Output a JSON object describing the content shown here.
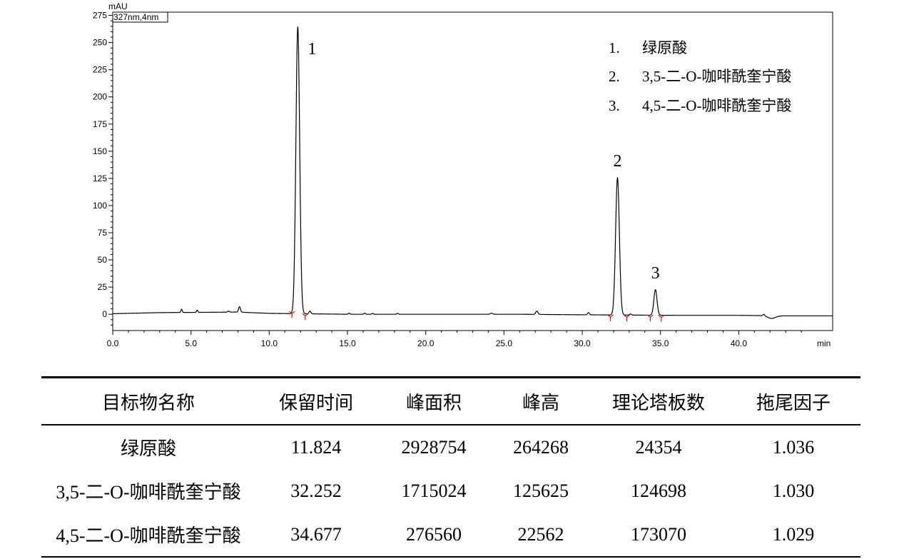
{
  "chart_data": {
    "type": "line",
    "detector_label": "327nm,4nm",
    "y_unit": "mAU",
    "x_unit": "min",
    "xlim": [
      0,
      46
    ],
    "ylim": [
      -15,
      278
    ],
    "x_ticks": [
      0.0,
      5.0,
      10.0,
      15.0,
      20.0,
      25.0,
      30.0,
      35.0,
      40.0
    ],
    "x_tick_labels": [
      "0.0",
      "5.0",
      "10.0",
      "15.0",
      "20.0",
      "25.0",
      "30.0",
      "35.0",
      "40.0"
    ],
    "y_ticks": [
      0,
      25,
      50,
      75,
      100,
      125,
      150,
      175,
      200,
      225,
      250,
      275
    ],
    "y_tick_labels": [
      "0",
      "25",
      "50",
      "75",
      "100",
      "125",
      "150",
      "175",
      "200",
      "225",
      "250",
      "275"
    ],
    "baseline_points": [
      [
        0,
        0.5
      ],
      [
        3,
        1.5
      ],
      [
        8,
        2
      ],
      [
        10,
        0.8
      ],
      [
        15,
        0
      ],
      [
        22,
        0
      ],
      [
        26,
        0
      ],
      [
        30,
        -0.5
      ],
      [
        36,
        -1
      ],
      [
        40,
        -1
      ],
      [
        43,
        -1.5
      ],
      [
        46,
        -1.5
      ]
    ],
    "peaks": [
      {
        "label": "1",
        "rt": 11.824,
        "height": 264.3,
        "width": 0.12
      },
      {
        "label": "2",
        "rt": 32.252,
        "height": 125.6,
        "width": 0.12
      },
      {
        "label": "3",
        "rt": 34.677,
        "height": 22.6,
        "width": 0.1
      }
    ],
    "minor_peaks": [
      {
        "rt": 4.4,
        "height": 3,
        "width": 0.04
      },
      {
        "rt": 5.4,
        "height": 2,
        "width": 0.04
      },
      {
        "rt": 7.4,
        "height": 1,
        "width": 0.05
      },
      {
        "rt": 8.1,
        "height": 5,
        "width": 0.06
      },
      {
        "rt": 12.6,
        "height": 2.5,
        "width": 0.06
      },
      {
        "rt": 15.1,
        "height": 1,
        "width": 0.05
      },
      {
        "rt": 16.1,
        "height": 1,
        "width": 0.05
      },
      {
        "rt": 16.6,
        "height": 0.8,
        "width": 0.05
      },
      {
        "rt": 18.2,
        "height": 0.8,
        "width": 0.05
      },
      {
        "rt": 24.2,
        "height": 1,
        "width": 0.07
      },
      {
        "rt": 27.1,
        "height": 3,
        "width": 0.07
      },
      {
        "rt": 30.4,
        "height": 2,
        "width": 0.06
      },
      {
        "rt": 33.1,
        "height": 1,
        "width": 0.06
      },
      {
        "rt": 41.6,
        "height": 1.5,
        "width": 0.06
      }
    ],
    "dips": [
      {
        "rt": 42.1,
        "depth": -2.5,
        "width": 0.25
      }
    ],
    "integration_markers": [
      11.45,
      12.3,
      31.8,
      32.85,
      34.35,
      35.05
    ],
    "legend": [
      {
        "num": "1.",
        "name": "绿原酸"
      },
      {
        "num": "2.",
        "name": "3,5-二-O-咖啡酰奎宁酸"
      },
      {
        "num": "3.",
        "name": "4,5-二-O-咖啡酰奎宁酸"
      }
    ]
  },
  "table": {
    "headers": [
      "目标物名称",
      "保留时间",
      "峰面积",
      "峰高",
      "理论塔板数",
      "拖尾因子"
    ],
    "rows": [
      [
        "绿原酸",
        "11.824",
        "2928754",
        "264268",
        "24354",
        "1.036"
      ],
      [
        "3,5-二-O-咖啡酰奎宁酸",
        "32.252",
        "1715024",
        "125625",
        "124698",
        "1.030"
      ],
      [
        "4,5-二-O-咖啡酰奎宁酸",
        "34.677",
        "276560",
        "22562",
        "173070",
        "1.029"
      ]
    ]
  },
  "colors": {
    "trace": "#000000",
    "marker": "#ff0000"
  }
}
